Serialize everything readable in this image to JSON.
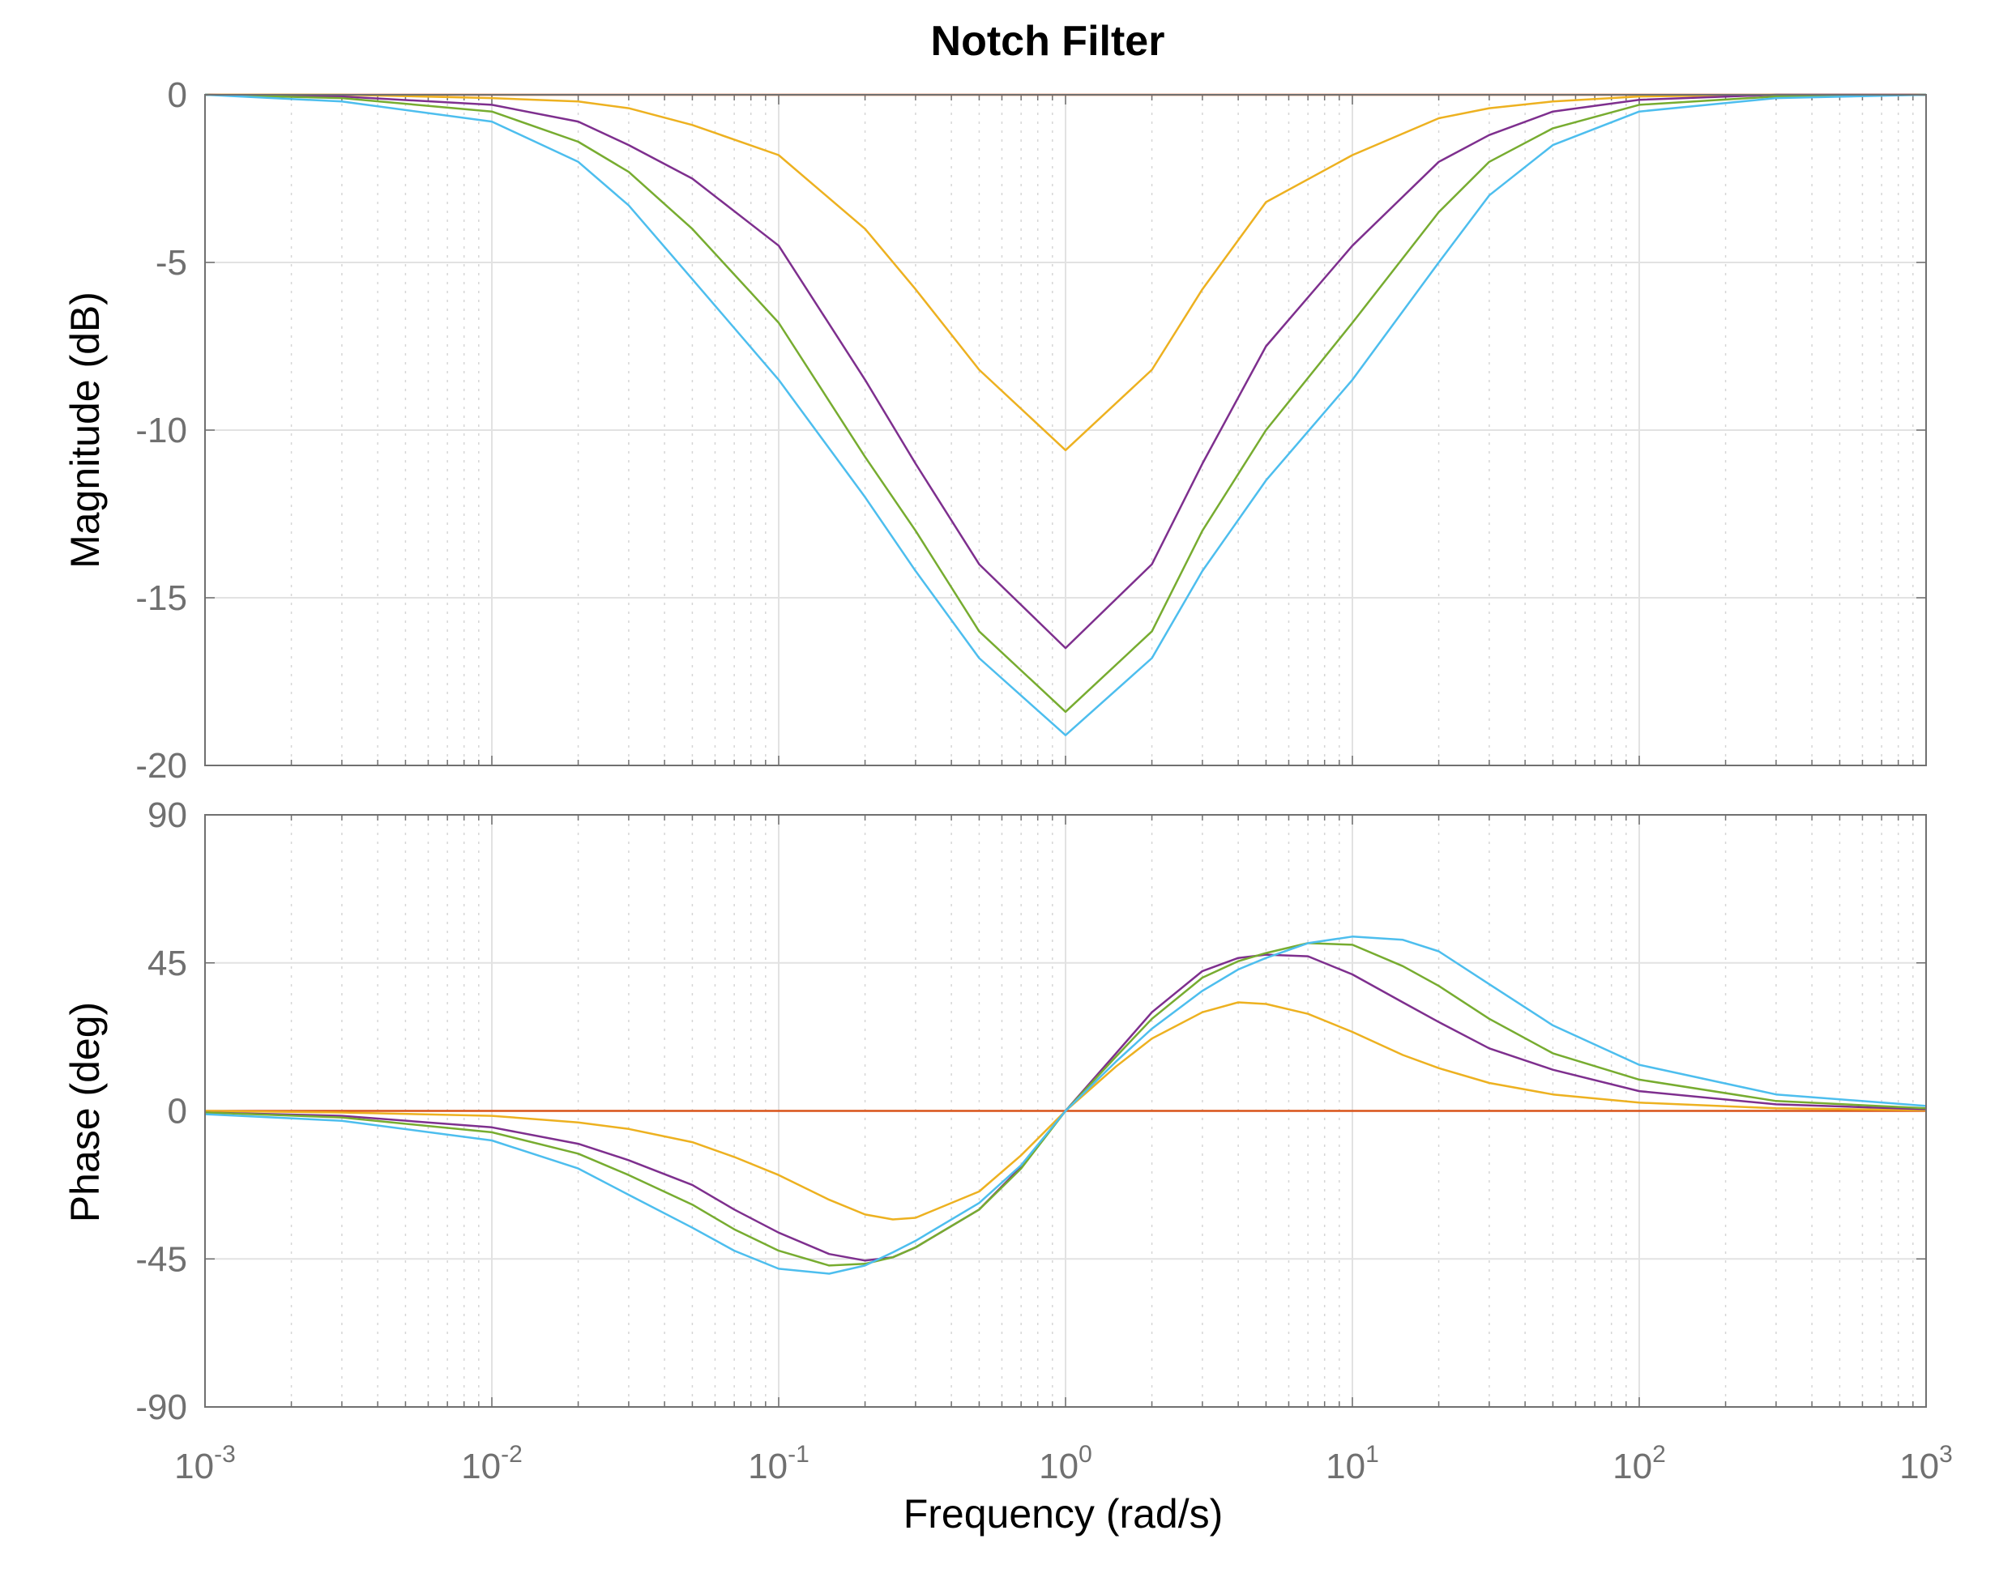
{
  "chart_data": {
    "type": "line",
    "title": "Notch Filter",
    "xlabel": "Frequency  (rad/s)",
    "xscale": "log",
    "xlim": [
      0.001,
      1000
    ],
    "x_ticks": [
      {
        "base": "10",
        "exp": "-3"
      },
      {
        "base": "10",
        "exp": "-2"
      },
      {
        "base": "10",
        "exp": "-1"
      },
      {
        "base": "10",
        "exp": "0"
      },
      {
        "base": "10",
        "exp": "1"
      },
      {
        "base": "10",
        "exp": "2"
      },
      {
        "base": "10",
        "exp": "3"
      }
    ],
    "grid": true,
    "colors": {
      "reference": "#D95319",
      "orange": "#EDB120",
      "purple": "#7E2F8E",
      "green": "#77AC30",
      "cyan": "#4DBEEE",
      "axis": "#707070"
    },
    "panels": [
      {
        "id": "magnitude",
        "ylabel": "Magnitude (dB)",
        "ylim": [
          -20,
          0
        ],
        "y_ticks": [
          "-20",
          "-15",
          "-10",
          "-5",
          "0"
        ],
        "x": [
          0.001,
          0.003,
          0.01,
          0.02,
          0.03,
          0.05,
          0.1,
          0.2,
          0.3,
          0.5,
          1,
          2,
          3,
          5,
          10,
          20,
          30,
          50,
          100,
          300,
          1000
        ],
        "series": [
          {
            "color": "reference",
            "values": [
              0,
              0,
              0,
              0,
              0,
              0,
              0,
              0,
              0,
              0,
              0,
              0,
              0,
              0,
              0,
              0,
              0,
              0,
              0,
              0,
              0
            ]
          },
          {
            "color": "orange",
            "values": [
              0,
              0,
              -0.1,
              -0.2,
              -0.4,
              -0.9,
              -1.8,
              -4.0,
              -5.8,
              -8.2,
              -10.6,
              -8.2,
              -5.8,
              -3.2,
              -1.8,
              -0.7,
              -0.4,
              -0.2,
              -0.05,
              0,
              0
            ]
          },
          {
            "color": "purple",
            "values": [
              0,
              -0.05,
              -0.3,
              -0.8,
              -1.5,
              -2.5,
              -4.5,
              -8.5,
              -11.0,
              -14.0,
              -16.5,
              -14.0,
              -11.0,
              -7.5,
              -4.5,
              -2.0,
              -1.2,
              -0.5,
              -0.15,
              0,
              0
            ]
          },
          {
            "color": "green",
            "values": [
              0,
              -0.1,
              -0.5,
              -1.4,
              -2.3,
              -4.0,
              -6.8,
              -10.8,
              -13.0,
              -16.0,
              -18.4,
              -16.0,
              -13.0,
              -10.0,
              -6.8,
              -3.5,
              -2.0,
              -1.0,
              -0.3,
              -0.05,
              0
            ]
          },
          {
            "color": "cyan",
            "values": [
              0,
              -0.2,
              -0.8,
              -2.0,
              -3.3,
              -5.5,
              -8.5,
              -12.0,
              -14.2,
              -16.8,
              -19.1,
              -16.8,
              -14.2,
              -11.5,
              -8.5,
              -5.0,
              -3.0,
              -1.5,
              -0.5,
              -0.1,
              0
            ]
          }
        ]
      },
      {
        "id": "phase",
        "ylabel": "Phase (deg)",
        "ylim": [
          -90,
          90
        ],
        "y_ticks": [
          "-90",
          "-45",
          "0",
          "45",
          "90"
        ],
        "x": [
          0.001,
          0.003,
          0.01,
          0.02,
          0.03,
          0.05,
          0.07,
          0.1,
          0.15,
          0.2,
          0.25,
          0.3,
          0.5,
          0.7,
          1,
          1.5,
          2,
          3,
          4,
          5,
          7,
          10,
          15,
          20,
          30,
          50,
          100,
          300,
          1000
        ],
        "series": [
          {
            "color": "reference",
            "values": [
              0,
              0,
              0,
              0,
              0,
              0,
              0,
              0,
              0,
              0,
              0,
              0,
              0,
              0,
              0,
              0,
              0,
              0,
              0,
              0,
              0,
              0,
              0,
              0,
              0,
              0,
              0,
              0,
              0
            ]
          },
          {
            "color": "orange",
            "values": [
              0,
              -0.5,
              -1.5,
              -3.5,
              -5.5,
              -9.5,
              -14.0,
              -19.5,
              -27.0,
              -31.5,
              -33.0,
              -32.5,
              -24.5,
              -13.5,
              0,
              13.5,
              22.0,
              30.0,
              33.0,
              32.5,
              29.5,
              24.0,
              17.0,
              13.0,
              8.5,
              5.0,
              2.5,
              0.8,
              0.2
            ]
          },
          {
            "color": "purple",
            "values": [
              -0.5,
              -1.5,
              -5.0,
              -10.0,
              -15.0,
              -22.5,
              -30.0,
              -37.0,
              -43.5,
              -45.5,
              -44.5,
              -41.5,
              -30.0,
              -17.0,
              0,
              17.5,
              30.0,
              42.5,
              46.5,
              47.5,
              47.0,
              41.5,
              33.0,
              27.0,
              19.0,
              12.5,
              6.0,
              2.0,
              0.5
            ]
          },
          {
            "color": "green",
            "values": [
              -0.5,
              -2.0,
              -6.5,
              -13.0,
              -19.5,
              -28.5,
              -36.0,
              -42.5,
              -47.0,
              -46.5,
              -44.5,
              -41.5,
              -30.0,
              -17.5,
              0,
              16.5,
              28.0,
              40.5,
              45.5,
              48.0,
              51.0,
              50.5,
              44.0,
              38.0,
              28.0,
              17.5,
              9.5,
              3.0,
              0.8
            ]
          },
          {
            "color": "cyan",
            "values": [
              -1.0,
              -3.0,
              -9.0,
              -17.5,
              -25.5,
              -35.5,
              -42.5,
              -48.0,
              -49.5,
              -47.0,
              -43.0,
              -39.5,
              -28.0,
              -16.5,
              0,
              15.0,
              25.0,
              36.5,
              43.0,
              46.5,
              51.0,
              53.0,
              52.0,
              48.5,
              38.5,
              26.0,
              14.0,
              5.0,
              1.5
            ]
          }
        ]
      }
    ]
  }
}
